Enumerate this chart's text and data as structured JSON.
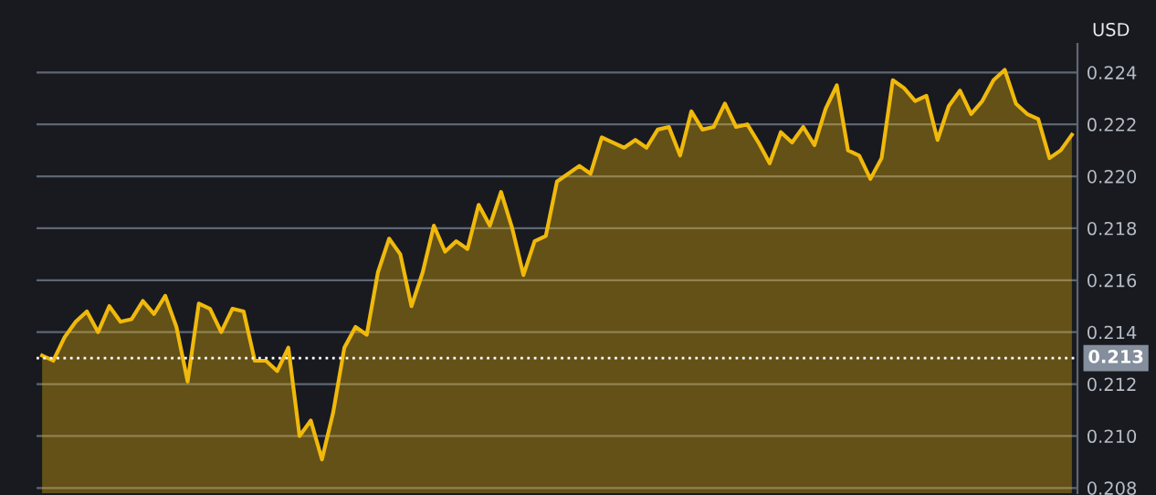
{
  "chart_data": {
    "type": "area",
    "ylabel": "USD",
    "categories": [
      null,
      null,
      null,
      null,
      null,
      null,
      null,
      null,
      null,
      null,
      null,
      null,
      null,
      null,
      null,
      null,
      null,
      null,
      null,
      null,
      null,
      null,
      null,
      null,
      null,
      null,
      null,
      null,
      null,
      null,
      null,
      null,
      null,
      null,
      null,
      null,
      null,
      null,
      null,
      null,
      null,
      null,
      null,
      null,
      null,
      null,
      null,
      null,
      null,
      null,
      null,
      null,
      null,
      null,
      null,
      null,
      null,
      null,
      null,
      null,
      null,
      null,
      null,
      null,
      null,
      null,
      null,
      null,
      null,
      null,
      null,
      null,
      null,
      null,
      null,
      null,
      null,
      null,
      null,
      null,
      null,
      null,
      null,
      null,
      null,
      null,
      null,
      null,
      null,
      null,
      null,
      null,
      null
    ],
    "series": [
      {
        "color": "#f0b90b",
        "values": [
          0.2131,
          0.2129,
          0.2138,
          0.2144,
          0.2148,
          0.214,
          0.215,
          0.2144,
          0.2145,
          0.2152,
          0.2147,
          0.2154,
          0.2142,
          0.2121,
          0.2151,
          0.2149,
          0.214,
          0.2149,
          0.2148,
          0.2129,
          0.2129,
          0.2125,
          0.2134,
          0.21,
          0.2106,
          0.2091,
          0.2109,
          0.2134,
          0.2142,
          0.2139,
          0.2163,
          0.2176,
          0.217,
          0.215,
          0.2163,
          0.2181,
          0.2171,
          0.2175,
          0.2172,
          0.2189,
          0.2181,
          0.2194,
          0.218,
          0.2162,
          0.2175,
          0.2177,
          0.2198,
          0.2201,
          0.2204,
          0.2201,
          0.2215,
          0.2213,
          0.2211,
          0.2214,
          0.2211,
          0.2218,
          0.2219,
          0.2208,
          0.2225,
          0.2218,
          0.2219,
          0.2228,
          0.2219,
          0.222,
          0.2213,
          0.2205,
          0.2217,
          0.2213,
          0.2219,
          0.2212,
          0.2226,
          0.2235,
          0.221,
          0.2208,
          0.2199,
          0.2207,
          0.2237,
          0.2234,
          0.2229,
          0.2231,
          0.2214,
          0.2227,
          0.2233,
          0.2224,
          0.2229,
          0.2237,
          0.2241,
          0.2228,
          0.2224,
          0.2222,
          0.2207,
          0.221,
          0.2216
        ]
      }
    ],
    "ylim": [
      0.2078,
      0.2251
    ],
    "yticks": [
      0.208,
      {
        "value": 0.21,
        "label": "0.210"
      },
      0.212,
      0.214,
      0.216,
      0.218,
      {
        "value": 0.22,
        "label": "0.220"
      },
      0.222,
      0.224
    ],
    "grid": "y",
    "tick_labels": "y",
    "ref_lines": [
      {
        "axis": "y",
        "value": 0.213,
        "label": "0.213",
        "color": "#ffffff",
        "line_style": "dotted"
      }
    ]
  }
}
